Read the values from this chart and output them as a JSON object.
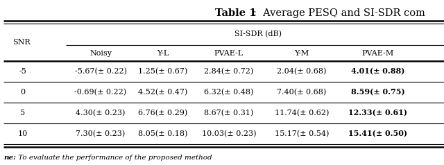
{
  "title_bold": "Table 1",
  "title_rest": ":  Average PESQ and SI-SDR com",
  "group_header": "SI-SDR (dB)",
  "col_headers": [
    "Noisy",
    "Y-L",
    "PVAE-L",
    "Y-M",
    "PVAE-M"
  ],
  "row_header": "SNR",
  "snr_values": [
    "-5",
    "0",
    "5",
    "10"
  ],
  "data": [
    [
      "-5.67(± 0.22)",
      "1.25(± 0.67)",
      "2.84(± 0.72)",
      "2.04(± 0.68)",
      "4.01(± 0.88)"
    ],
    [
      "-0.69(± 0.22)",
      "4.52(± 0.47)",
      "6.32(± 0.48)",
      "7.40(± 0.68)",
      "8.59(± 0.75)"
    ],
    [
      "4.30(± 0.23)",
      "6.76(± 0.29)",
      "8.67(± 0.31)",
      "11.74(± 0.62)",
      "12.33(± 0.61)"
    ],
    [
      "7.30(± 0.23)",
      "8.05(± 0.18)",
      "10.03(± 0.23)",
      "15.17(± 0.54)",
      "15.41(± 0.50)"
    ]
  ],
  "bold_col": 4,
  "footnote_bold": "ne:",
  "footnote_rest": " To evaluate the performance of the proposed method",
  "background_color": "#ffffff",
  "font_size": 8.0,
  "title_font_size": 10.5
}
